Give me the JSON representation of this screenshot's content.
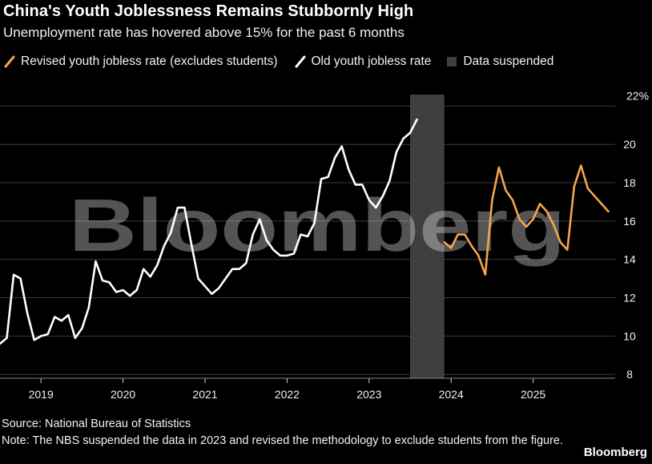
{
  "header": {
    "title": "China's Youth Joblessness Remains Stubbornly High",
    "subtitle": "Unemployment rate has hovered above 15% for the past 6 months"
  },
  "legend": {
    "revised_label": "Revised youth jobless rate (excludes students)",
    "old_label": "Old youth jobless rate",
    "suspended_label": "Data suspended"
  },
  "footer": {
    "source": "Source: National Bureau of Statistics",
    "note": "Note: The NBS suspended the data in 2023 and revised the methodology to exclude students from the figure.",
    "brand": "Bloomberg"
  },
  "colors": {
    "background": "#000000",
    "old_series": "#ffffff",
    "revised_series": "#f6a54c",
    "suspended_band": "#3f3f3f",
    "gridline": "#3a3a3a"
  },
  "chart_data": {
    "type": "line",
    "watermark": "Bloomberg",
    "x_axis": {
      "ticks": [
        "2019",
        "2020",
        "2021",
        "2022",
        "2023",
        "2024",
        "2025"
      ],
      "range": [
        "2018-07",
        "2026-01"
      ]
    },
    "y_axis": {
      "ticks": [
        8,
        10,
        12,
        14,
        16,
        18,
        20,
        22
      ],
      "top_tick_label": "22%",
      "range": [
        7.8,
        22.6
      ],
      "grid": true,
      "position": "right"
    },
    "shaded_regions": [
      {
        "name": "Data suspended",
        "start": "2023-07",
        "end": "2023-12"
      }
    ],
    "series": [
      {
        "name": "Old youth jobless rate",
        "color": "#ffffff",
        "points": [
          [
            "2018-07",
            9.6
          ],
          [
            "2018-08",
            9.9
          ],
          [
            "2018-09",
            13.2
          ],
          [
            "2018-10",
            13.0
          ],
          [
            "2018-11",
            11.2
          ],
          [
            "2018-12",
            9.8
          ],
          [
            "2019-01",
            10.0
          ],
          [
            "2019-02",
            10.1
          ],
          [
            "2019-03",
            11.0
          ],
          [
            "2019-04",
            10.8
          ],
          [
            "2019-05",
            11.1
          ],
          [
            "2019-06",
            9.9
          ],
          [
            "2019-07",
            10.4
          ],
          [
            "2019-08",
            11.5
          ],
          [
            "2019-09",
            13.9
          ],
          [
            "2019-10",
            12.9
          ],
          [
            "2019-11",
            12.8
          ],
          [
            "2019-12",
            12.3
          ],
          [
            "2020-01",
            12.4
          ],
          [
            "2020-02",
            12.1
          ],
          [
            "2020-03",
            12.4
          ],
          [
            "2020-04",
            13.5
          ],
          [
            "2020-05",
            13.1
          ],
          [
            "2020-06",
            13.7
          ],
          [
            "2020-07",
            14.7
          ],
          [
            "2020-08",
            15.4
          ],
          [
            "2020-09",
            16.7
          ],
          [
            "2020-10",
            16.7
          ],
          [
            "2020-11",
            14.8
          ],
          [
            "2020-12",
            13.0
          ],
          [
            "2021-01",
            12.6
          ],
          [
            "2021-02",
            12.2
          ],
          [
            "2021-03",
            12.5
          ],
          [
            "2021-04",
            13.0
          ],
          [
            "2021-05",
            13.5
          ],
          [
            "2021-06",
            13.5
          ],
          [
            "2021-07",
            13.8
          ],
          [
            "2021-08",
            15.3
          ],
          [
            "2021-09",
            16.1
          ],
          [
            "2021-10",
            15.0
          ],
          [
            "2021-11",
            14.5
          ],
          [
            "2021-12",
            14.2
          ],
          [
            "2022-01",
            14.2
          ],
          [
            "2022-02",
            14.3
          ],
          [
            "2022-03",
            15.3
          ],
          [
            "2022-04",
            15.2
          ],
          [
            "2022-05",
            15.9
          ],
          [
            "2022-06",
            18.2
          ],
          [
            "2022-07",
            18.3
          ],
          [
            "2022-08",
            19.3
          ],
          [
            "2022-09",
            19.9
          ],
          [
            "2022-10",
            18.7
          ],
          [
            "2022-11",
            17.9
          ],
          [
            "2022-12",
            17.9
          ],
          [
            "2023-01",
            17.1
          ],
          [
            "2023-02",
            16.7
          ],
          [
            "2023-03",
            17.3
          ],
          [
            "2023-04",
            18.1
          ],
          [
            "2023-05",
            19.6
          ],
          [
            "2023-06",
            20.3
          ],
          [
            "2023-07",
            20.6
          ],
          [
            "2023-08",
            21.3
          ]
        ]
      },
      {
        "name": "Revised youth jobless rate (excludes students)",
        "color": "#f6a54c",
        "points": [
          [
            "2023-12",
            14.9
          ],
          [
            "2024-01",
            14.6
          ],
          [
            "2024-02",
            15.3
          ],
          [
            "2024-03",
            15.3
          ],
          [
            "2024-04",
            14.7
          ],
          [
            "2024-05",
            14.2
          ],
          [
            "2024-06",
            13.2
          ],
          [
            "2024-07",
            17.1
          ],
          [
            "2024-08",
            18.8
          ],
          [
            "2024-09",
            17.6
          ],
          [
            "2024-10",
            17.1
          ],
          [
            "2024-11",
            16.1
          ],
          [
            "2024-12",
            15.7
          ],
          [
            "2025-01",
            16.1
          ],
          [
            "2025-02",
            16.9
          ],
          [
            "2025-03",
            16.5
          ],
          [
            "2025-04",
            15.8
          ],
          [
            "2025-05",
            14.9
          ],
          [
            "2025-06",
            14.5
          ],
          [
            "2025-07",
            17.8
          ],
          [
            "2025-08",
            18.9
          ],
          [
            "2025-09",
            17.7
          ],
          [
            "2025-10",
            17.3
          ],
          [
            "2025-11",
            16.9
          ],
          [
            "2025-12",
            16.5
          ]
        ]
      }
    ]
  }
}
